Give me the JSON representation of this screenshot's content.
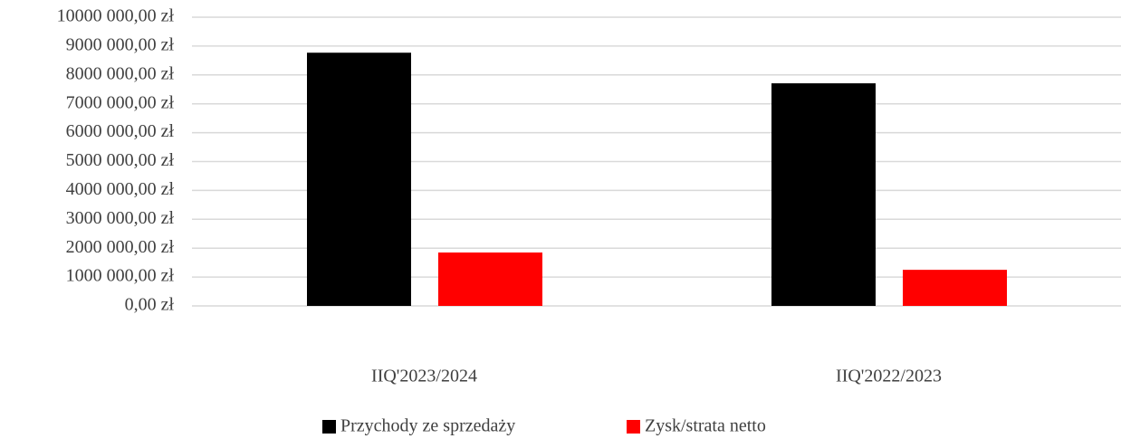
{
  "chart_data": {
    "type": "bar",
    "categories": [
      "IIQ'2023/2024",
      "IIQ'2022/2023"
    ],
    "series": [
      {
        "name": "Przychody ze sprzedaży",
        "color": "#000000",
        "values": [
          8770000,
          7710000
        ]
      },
      {
        "name": "Zysk/strata netto",
        "color": "#ff0000",
        "values": [
          1850000,
          1250000
        ]
      }
    ],
    "ylim": [
      0,
      10000000
    ],
    "yticks": [
      {
        "value": 0,
        "label": "0,00 zł"
      },
      {
        "value": 1000000,
        "label": "1000 000,00 zł"
      },
      {
        "value": 2000000,
        "label": "2000 000,00 zł"
      },
      {
        "value": 3000000,
        "label": "3000 000,00 zł"
      },
      {
        "value": 4000000,
        "label": "4000 000,00 zł"
      },
      {
        "value": 5000000,
        "label": "5000 000,00 zł"
      },
      {
        "value": 6000000,
        "label": "6000 000,00 zł"
      },
      {
        "value": 7000000,
        "label": "7000 000,00 zł"
      },
      {
        "value": 8000000,
        "label": "8000 000,00 zł"
      },
      {
        "value": 9000000,
        "label": "9000 000,00 zł"
      },
      {
        "value": 10000000,
        "label": "10000 000,00 zł"
      }
    ],
    "grid": true,
    "legend": "bottom"
  }
}
